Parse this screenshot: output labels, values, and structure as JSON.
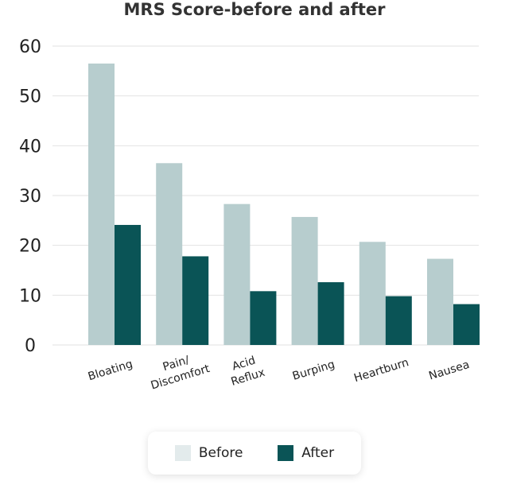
{
  "chart_data": {
    "type": "bar",
    "title": "MRS Score-before and after",
    "categories": [
      [
        "Bloating"
      ],
      [
        "Pain/",
        "Discomfort"
      ],
      [
        "Acid",
        "Reflux"
      ],
      [
        "Burping"
      ],
      [
        "Heartburn"
      ],
      [
        "Nausea"
      ]
    ],
    "series": [
      {
        "name": "Before",
        "values": [
          56.5,
          36.5,
          28.3,
          25.7,
          20.7,
          17.3
        ]
      },
      {
        "name": "After",
        "values": [
          24.1,
          17.8,
          10.8,
          12.6,
          9.8,
          8.2
        ]
      }
    ],
    "ylim": [
      0,
      60
    ],
    "yticks": [
      "0",
      "10",
      "20",
      "30",
      "40",
      "50",
      "60"
    ],
    "grid": true,
    "legend_position": "bottom"
  },
  "colors": {
    "before_bar": "#b7cdce",
    "before_swatch": "#e3ebec",
    "after": "#0a5456"
  }
}
